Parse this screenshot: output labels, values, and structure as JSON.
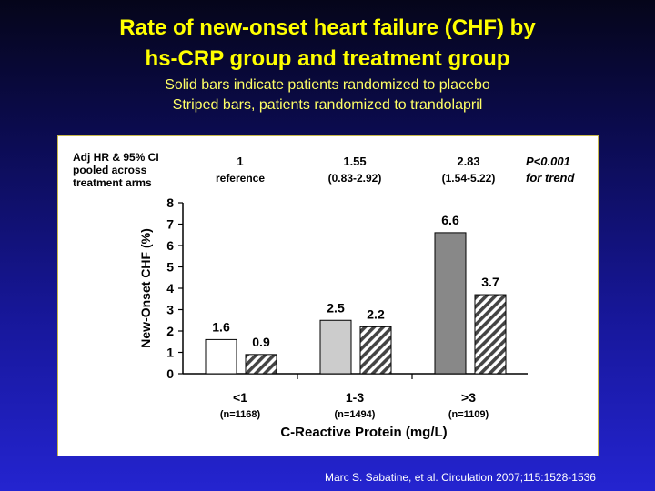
{
  "slide": {
    "title_line1": "Rate of new-onset heart failure (CHF) by",
    "title_line2": "hs-CRP group and treatment group",
    "subtitle_line1": "Solid bars indicate patients randomized to placebo",
    "subtitle_line2": "Striped bars,  patients  randomized  to  trandolapril",
    "citation": "Marc S. Sabatine, et al. Circulation 2007;115:1528-1536"
  },
  "colors": {
    "title": "#ffff00",
    "bar_group1_solid": "#ffffff",
    "bar_group2_solid": "#cccccc",
    "bar_group3_solid": "#888888",
    "stripe": "#444444"
  },
  "chart_data": {
    "type": "bar",
    "header_label": [
      "Adj HR & 95% CI",
      "pooled across",
      "treatment arms"
    ],
    "hr_annotations": [
      {
        "line1": "1",
        "line2": "reference"
      },
      {
        "line1": "1.55",
        "line2": "(0.83-2.92)"
      },
      {
        "line1": "2.83",
        "line2": "(1.54-5.22)"
      }
    ],
    "trend_annotation": {
      "line1": "P<0.001",
      "line2": "for trend"
    },
    "categories": [
      "<1",
      "1-3",
      ">3"
    ],
    "category_n": [
      "(n=1168)",
      "(n=1494)",
      "(n=1109)"
    ],
    "series": [
      {
        "values": [
          1.6,
          2.5,
          6.6
        ],
        "labels": [
          "1.6",
          "2.5",
          "6.6"
        ],
        "pattern": "solid"
      },
      {
        "values": [
          0.9,
          2.2,
          3.7
        ],
        "labels": [
          "0.9",
          "2.2",
          "3.7"
        ],
        "pattern": "striped"
      }
    ],
    "xlabel": "C-Reactive Protein (mg/L)",
    "ylabel": "New-Onset CHF (%)",
    "ylim": [
      0,
      8
    ],
    "yticks": [
      "0",
      "1",
      "2",
      "3",
      "4",
      "5",
      "6",
      "7",
      "8"
    ],
    "grid": false
  }
}
